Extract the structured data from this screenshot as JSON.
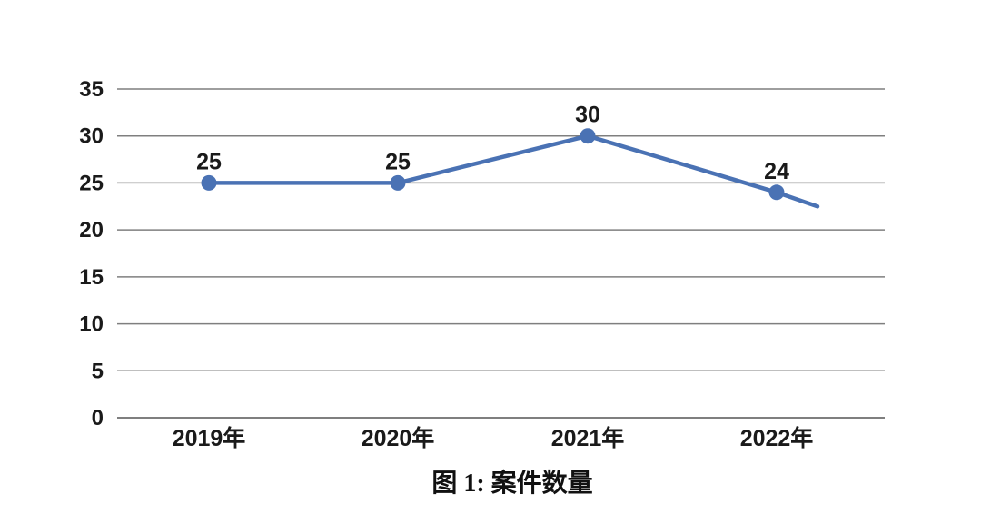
{
  "chart_data": {
    "type": "line",
    "title": "图 1: 案件数量",
    "categories": [
      "2019年",
      "2020年",
      "2021年",
      "2022年"
    ],
    "series": [
      {
        "name": "案件数量",
        "values": [
          25,
          25,
          30,
          24
        ]
      }
    ],
    "data_labels": [
      "25",
      "25",
      "30",
      "24"
    ],
    "y_ticks": [
      0,
      5,
      10,
      15,
      20,
      25,
      30,
      35
    ],
    "ylim": [
      0,
      35
    ],
    "grid": true,
    "legend_position": "none",
    "trailing_segment_value": 22.5,
    "colors": {
      "line": "#4a72b4",
      "marker": "#4a72b4",
      "gridline": "#7f7f7f",
      "tick_label": "#1a1a1a",
      "data_label": "#1a1a1a",
      "caption": "#111111",
      "background": "#ffffff"
    }
  }
}
